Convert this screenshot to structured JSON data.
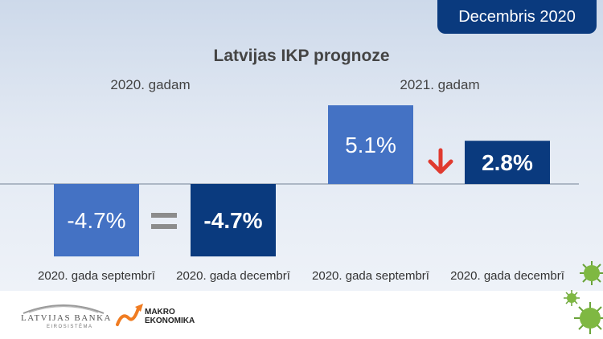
{
  "badge": "Decembris 2020",
  "chart_data": {
    "type": "bar",
    "title": "Latvijas IKP prognoze",
    "unit": "%",
    "groups": [
      {
        "label": "2020. gadam",
        "bars": [
          {
            "category": "2020. gada septembrī",
            "value": -4.7,
            "value_label": "-4.7%",
            "color": "#4472c4",
            "bold": false
          },
          {
            "category": "2020. gada decembrī",
            "value": -4.7,
            "value_label": "-4.7%",
            "color": "#0a3a7e",
            "bold": true
          }
        ],
        "change_symbol": "equal"
      },
      {
        "label": "2021. gadam",
        "bars": [
          {
            "category": "2020. gada septembrī",
            "value": 5.1,
            "value_label": "5.1%",
            "color": "#4472c4",
            "bold": false
          },
          {
            "category": "2020. gada decembrī",
            "value": 2.8,
            "value_label": "2.8%",
            "color": "#0a3a7e",
            "bold": true
          }
        ],
        "change_symbol": "down-arrow"
      }
    ],
    "colors": {
      "september": "#4472c4",
      "december": "#0a3a7e",
      "equal_sign": "#8c8c8c",
      "down_arrow": "#e03a2f"
    }
  },
  "footer": {
    "latvijas_banka": "LATVIJAS BANKA",
    "eurosistema": "EIROSISTĒMA",
    "makro_line1": "MAKRO",
    "makro_line2": "EKONOMIKA"
  }
}
